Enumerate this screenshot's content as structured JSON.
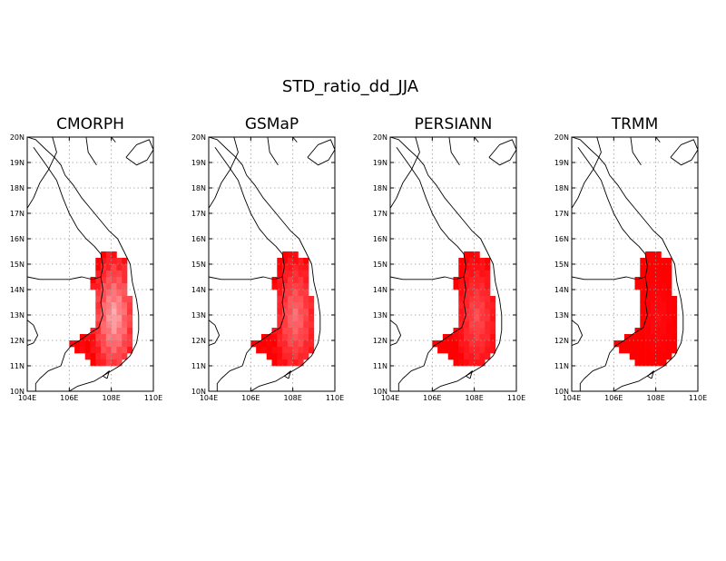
{
  "title": "STD_ratio_dd_JJA",
  "panel_titles": [
    "CMORPH",
    "GSMaP",
    "PERSIANN",
    "TRMM"
  ],
  "chart_data": [
    {
      "type": "heatmap",
      "title": "CMORPH",
      "xlim": [
        104,
        110
      ],
      "ylim": [
        10,
        20
      ],
      "x_ticks": [
        "104E",
        "106E",
        "108E",
        "110E"
      ],
      "y_ticks": [
        "10N",
        "11N",
        "12N",
        "13N",
        "14N",
        "15N",
        "16N",
        "17N",
        "18N",
        "19N",
        "20N"
      ],
      "grid": true,
      "cell_size_deg": 0.25,
      "color_low": "#ff0000",
      "color_high": "#ffffff",
      "intensity_note": "pale pink in the interior of the domain, saturated red along edges",
      "intensity_scale": 0.8
    },
    {
      "type": "heatmap",
      "title": "GSMaP",
      "xlim": [
        104,
        110
      ],
      "ylim": [
        10,
        20
      ],
      "x_ticks": [
        "104E",
        "106E",
        "108E",
        "110E"
      ],
      "y_ticks": [
        "10N",
        "11N",
        "12N",
        "13N",
        "14N",
        "15N",
        "16N",
        "17N",
        "18N",
        "19N",
        "20N"
      ],
      "grid": true,
      "cell_size_deg": 0.25,
      "color_low": "#ff0000",
      "color_high": "#ffffff",
      "intensity_scale": 0.55
    },
    {
      "type": "heatmap",
      "title": "PERSIANN",
      "xlim": [
        104,
        110
      ],
      "ylim": [
        10,
        20
      ],
      "x_ticks": [
        "104E",
        "106E",
        "108E",
        "110E"
      ],
      "y_ticks": [
        "10N",
        "11N",
        "12N",
        "13N",
        "14N",
        "15N",
        "16N",
        "17N",
        "18N",
        "19N",
        "20N"
      ],
      "grid": true,
      "cell_size_deg": 0.25,
      "color_low": "#ff0000",
      "color_high": "#ffffff",
      "intensity_scale": 0.4
    },
    {
      "type": "heatmap",
      "title": "TRMM",
      "xlim": [
        104,
        110
      ],
      "ylim": [
        10,
        20
      ],
      "x_ticks": [
        "104E",
        "106E",
        "108E",
        "110E"
      ],
      "y_ticks": [
        "10N",
        "11N",
        "12N",
        "13N",
        "14N",
        "15N",
        "16N",
        "17N",
        "18N",
        "19N",
        "20N"
      ],
      "grid": true,
      "cell_size_deg": 0.25,
      "color_low": "#ff0000",
      "color_high": "#ffffff",
      "intensity_scale": 0.12
    }
  ],
  "domain_mask": [
    {
      "lat": 15.25,
      "lon": [
        107.5,
        108.0
      ]
    },
    {
      "lat": 15.0,
      "lon": [
        107.25,
        108.5
      ]
    },
    {
      "lat": 14.75,
      "lon": [
        107.25,
        108.5
      ]
    },
    {
      "lat": 14.5,
      "lon": [
        107.25,
        108.5
      ]
    },
    {
      "lat": 14.25,
      "lon": [
        107.0,
        108.5
      ]
    },
    {
      "lat": 14.0,
      "lon": [
        107.0,
        108.5
      ]
    },
    {
      "lat": 13.75,
      "lon": [
        107.25,
        108.5
      ]
    },
    {
      "lat": 13.5,
      "lon": [
        107.25,
        108.75
      ]
    },
    {
      "lat": 13.25,
      "lon": [
        107.25,
        108.75
      ]
    },
    {
      "lat": 13.0,
      "lon": [
        107.25,
        108.75
      ]
    },
    {
      "lat": 12.75,
      "lon": [
        107.25,
        108.75
      ]
    },
    {
      "lat": 12.5,
      "lon": [
        107.25,
        108.75
      ]
    },
    {
      "lat": 12.25,
      "lon": [
        107.0,
        108.75
      ]
    },
    {
      "lat": 12.0,
      "lon": [
        106.5,
        108.75
      ]
    },
    {
      "lat": 11.75,
      "lon": [
        106.0,
        108.75
      ]
    },
    {
      "lat": 11.5,
      "lon": [
        106.25,
        108.75
      ]
    },
    {
      "lat": 11.25,
      "lon": [
        106.75,
        108.5
      ]
    },
    {
      "lat": 11.0,
      "lon": [
        107.0,
        108.25
      ]
    }
  ]
}
